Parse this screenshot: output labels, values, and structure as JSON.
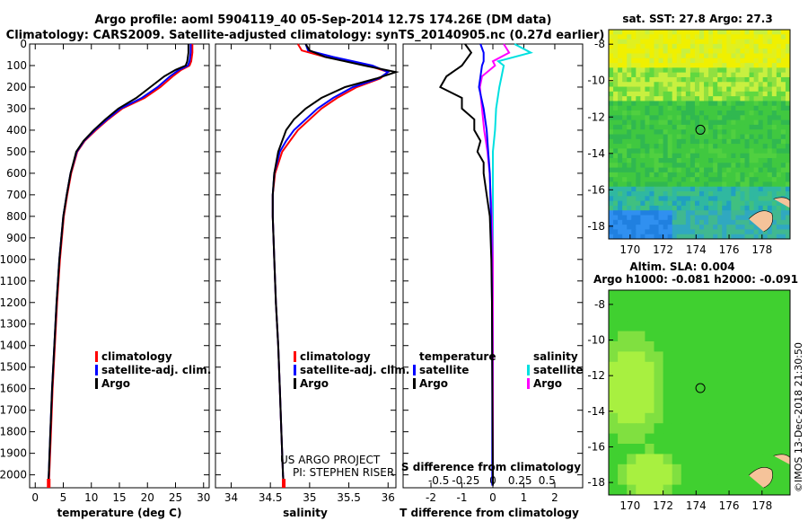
{
  "header": {
    "line1": "Argo profile: aoml 5904119_40 05-Sep-2014 12.7S 174.26E (DM data)",
    "line2": "Climatology: CARS2009. Satellite-adjusted climatology: synTS_20140905.nc (0.27d earlier)"
  },
  "colors": {
    "climatology": "#ff0000",
    "satellite": "#0000ff",
    "argo": "#000000",
    "sat_salinity": "#00e0e0",
    "argo_salinity": "#ff00ff"
  },
  "chart_data": [
    {
      "type": "line",
      "panel": "temperature",
      "xlabel": "temperature (deg C)",
      "xlim": [
        -1,
        31
      ],
      "ylim": [
        2060,
        0
      ],
      "xticks": [
        0,
        5,
        10,
        15,
        20,
        25,
        30
      ],
      "yticks": [
        0,
        100,
        200,
        300,
        400,
        500,
        600,
        700,
        800,
        900,
        1000,
        1100,
        1200,
        1300,
        1400,
        1500,
        1600,
        1700,
        1800,
        1900,
        2000
      ],
      "legend": [
        "climatology",
        "satellite-adj. clim.",
        "Argo"
      ],
      "series": [
        {
          "name": "climatology",
          "depth": [
            0,
            40,
            80,
            100,
            120,
            150,
            200,
            250,
            300,
            350,
            400,
            450,
            500,
            600,
            700,
            800,
            1000,
            1200,
            1400,
            1600,
            1800,
            2000,
            2050
          ],
          "values": [
            28.0,
            28.0,
            27.8,
            27.5,
            26.0,
            24.5,
            22.3,
            19.5,
            15.5,
            13.0,
            10.8,
            8.8,
            7.5,
            6.4,
            5.7,
            5.1,
            4.4,
            3.9,
            3.5,
            3.1,
            2.8,
            2.5,
            2.4
          ]
        },
        {
          "name": "satellite-adj. clim.",
          "depth": [
            0,
            40,
            80,
            100,
            120,
            150,
            200,
            250,
            300,
            350,
            400,
            450,
            500,
            600,
            700,
            800,
            1000,
            1200,
            1400,
            1600,
            1800,
            2000,
            2050
          ],
          "values": [
            27.7,
            27.7,
            27.5,
            27.2,
            25.6,
            24.0,
            21.8,
            19.0,
            15.2,
            12.8,
            10.6,
            8.7,
            7.4,
            6.3,
            5.6,
            5.0,
            4.3,
            3.8,
            3.4,
            3.0,
            2.7,
            2.4,
            2.3
          ]
        },
        {
          "name": "Argo",
          "depth": [
            0,
            40,
            80,
            100,
            120,
            150,
            200,
            250,
            300,
            350,
            400,
            450,
            500,
            600,
            700,
            800,
            1000,
            1200,
            1400,
            1600,
            1800,
            2000,
            2050
          ],
          "values": [
            27.3,
            27.3,
            27.1,
            26.8,
            25.0,
            23.0,
            20.5,
            18.0,
            14.8,
            12.5,
            10.4,
            8.6,
            7.3,
            6.3,
            5.6,
            5.0,
            4.3,
            3.8,
            3.4,
            3.0,
            2.7,
            2.4,
            2.3
          ]
        }
      ]
    },
    {
      "type": "line",
      "panel": "salinity",
      "xlabel": "salinity",
      "xlim": [
        33.8,
        36.1
      ],
      "ylim": [
        2060,
        0
      ],
      "xticks": [
        34,
        34.5,
        35,
        35.5,
        36
      ],
      "legend": [
        "climatology",
        "satellite-adj. clim.",
        "Argo"
      ],
      "series": [
        {
          "name": "climatology",
          "depth": [
            0,
            30,
            60,
            100,
            130,
            160,
            200,
            250,
            300,
            350,
            400,
            450,
            500,
            600,
            700,
            800,
            1000,
            1200,
            1400,
            1600,
            1800,
            2000,
            2050
          ],
          "values": [
            34.85,
            34.9,
            35.2,
            35.75,
            36.0,
            35.9,
            35.6,
            35.35,
            35.15,
            35.0,
            34.85,
            34.75,
            34.65,
            34.56,
            34.53,
            34.53,
            34.55,
            34.57,
            34.6,
            34.62,
            34.64,
            34.66,
            34.67
          ]
        },
        {
          "name": "satellite-adj. clim.",
          "depth": [
            0,
            30,
            60,
            100,
            130,
            160,
            200,
            250,
            300,
            350,
            400,
            450,
            500,
            600,
            700,
            800,
            1000,
            1200,
            1400,
            1600,
            1800,
            2000,
            2050
          ],
          "values": [
            34.95,
            34.98,
            35.3,
            35.8,
            36.0,
            35.88,
            35.55,
            35.3,
            35.1,
            34.95,
            34.8,
            34.7,
            34.62,
            34.55,
            34.53,
            34.53,
            34.55,
            34.57,
            34.6,
            34.62,
            34.64,
            34.66,
            34.67
          ]
        },
        {
          "name": "Argo",
          "depth": [
            0,
            30,
            60,
            100,
            130,
            160,
            200,
            250,
            300,
            350,
            400,
            450,
            500,
            600,
            700,
            800,
            1000,
            1200,
            1400,
            1600,
            1800,
            2000,
            2050
          ],
          "values": [
            34.95,
            35.0,
            35.2,
            35.7,
            36.1,
            35.85,
            35.45,
            35.15,
            34.95,
            34.8,
            34.7,
            34.65,
            34.6,
            34.55,
            34.53,
            34.53,
            34.55,
            34.57,
            34.6,
            34.62,
            34.64,
            34.66,
            34.67
          ]
        }
      ]
    },
    {
      "type": "line",
      "panel": "difference",
      "xlabel": "T difference from climatology",
      "top_label": "S difference from climatology",
      "xlim": [
        -2.9,
        2.9
      ],
      "ylim": [
        2060,
        0
      ],
      "xticks": [
        -2,
        -1,
        0,
        1,
        2
      ],
      "top_ticks": [
        "-0.5",
        "-0.25",
        "0",
        "0.25",
        "0.5"
      ],
      "legend_left_title": "temperature",
      "legend_right_title": "salinity",
      "legend_left": [
        "satellite",
        "Argo"
      ],
      "legend_right": [
        "satellite",
        "Argo"
      ],
      "series": [
        {
          "name": "T satellite",
          "depth": [
            0,
            40,
            80,
            100,
            150,
            200,
            300,
            400,
            500,
            600,
            700,
            800,
            1000,
            1200,
            1500,
            2000,
            2050
          ],
          "values": [
            -0.4,
            -0.3,
            -0.3,
            -0.35,
            -0.4,
            -0.45,
            -0.3,
            -0.2,
            -0.15,
            -0.1,
            -0.08,
            -0.06,
            -0.04,
            -0.03,
            -0.02,
            -0.02,
            -0.02
          ]
        },
        {
          "name": "T Argo",
          "depth": [
            0,
            40,
            80,
            100,
            150,
            200,
            250,
            300,
            350,
            400,
            450,
            500,
            550,
            600,
            700,
            800,
            1000,
            1200,
            1500,
            2000,
            2050
          ],
          "values": [
            -0.9,
            -0.7,
            -0.9,
            -1.0,
            -1.5,
            -1.7,
            -1.0,
            -1.0,
            -0.6,
            -0.6,
            -0.4,
            -0.5,
            -0.3,
            -0.3,
            -0.2,
            -0.1,
            -0.05,
            -0.03,
            -0.02,
            0.0,
            0.0
          ]
        },
        {
          "name": "S satellite",
          "depth": [
            0,
            40,
            80,
            100,
            150,
            200,
            300,
            400,
            500,
            600,
            800,
            1000,
            1500,
            2000,
            2050
          ],
          "values": [
            0.2,
            0.35,
            0.05,
            0.1,
            0.08,
            0.06,
            0.03,
            0.02,
            0.0,
            0.0,
            0.0,
            0.0,
            0.0,
            0.0,
            0.0
          ]
        },
        {
          "name": "S Argo",
          "depth": [
            0,
            40,
            80,
            100,
            150,
            200,
            300,
            400,
            500,
            600,
            800,
            1000,
            1500,
            2000,
            2050
          ],
          "values": [
            0.1,
            0.15,
            0.0,
            0.02,
            -0.1,
            -0.12,
            -0.1,
            -0.08,
            -0.05,
            -0.03,
            -0.01,
            0.0,
            0.0,
            0.0,
            0.0
          ]
        }
      ]
    },
    {
      "type": "heatmap",
      "panel": "sst-map",
      "title": "sat. SST: 27.8 Argo: 27.3",
      "xlim": [
        168.7,
        179.7
      ],
      "ylim": [
        -18.7,
        -7.2
      ],
      "xticks": [
        170,
        172,
        174,
        176,
        178
      ],
      "yticks": [
        -8,
        -10,
        -12,
        -14,
        -16,
        -18
      ],
      "float_position": {
        "lon": 174.26,
        "lat": -12.7
      }
    },
    {
      "type": "heatmap",
      "panel": "sla-map",
      "title": "Altim. SLA: 0.004",
      "subtitle": "Argo h1000: -0.081 h2000: -0.091",
      "xlim": [
        168.7,
        179.7
      ],
      "ylim": [
        -18.7,
        -7.2
      ],
      "xticks": [
        170,
        172,
        174,
        176,
        178
      ],
      "yticks": [
        -8,
        -10,
        -12,
        -14,
        -16,
        -18
      ],
      "float_position": {
        "lon": 174.26,
        "lat": -12.7
      }
    }
  ],
  "credits": {
    "line1": "US ARGO PROJECT",
    "line2": "PI: STEPHEN RISER",
    "side": "©IMOS 13-Dec-2018 21:30:50"
  }
}
